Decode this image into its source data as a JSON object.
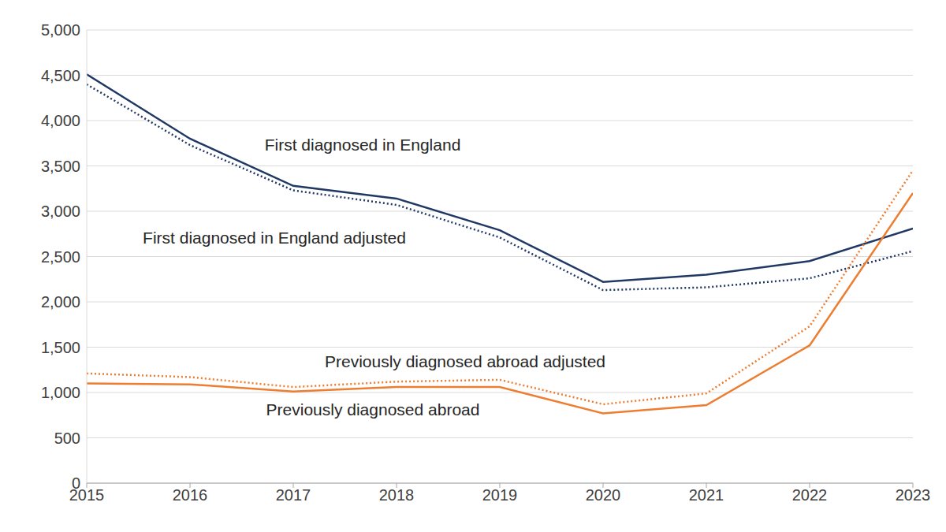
{
  "chart_data": {
    "type": "line",
    "x": [
      2015,
      2016,
      2017,
      2018,
      2019,
      2020,
      2021,
      2022,
      2023
    ],
    "xlim": [
      2015,
      2023
    ],
    "xticks": [
      2015,
      2016,
      2017,
      2018,
      2019,
      2020,
      2021,
      2022,
      2023
    ],
    "ylim": [
      0,
      5000
    ],
    "yticks": [
      0,
      500,
      {
        "value": 1000,
        "label": "1,000"
      },
      {
        "value": 1500,
        "label": "1,500"
      },
      {
        "value": 2000,
        "label": "2,000"
      },
      {
        "value": 2500,
        "label": "2,500"
      },
      {
        "value": 3000,
        "label": "3,000"
      },
      {
        "value": 3500,
        "label": "3,500"
      },
      {
        "value": 4000,
        "label": "4,000"
      },
      {
        "value": 4500,
        "label": "4,500"
      },
      {
        "value": 5000,
        "label": "5,000"
      }
    ],
    "grid": true,
    "series": [
      {
        "name": "First diagnosed in England",
        "color": "#203864",
        "line_style": "solid",
        "values": [
          4510,
          3800,
          3280,
          3140,
          2790,
          2220,
          2300,
          2450,
          2810
        ]
      },
      {
        "name": "First diagnosed in England adjusted",
        "color": "#203864",
        "line_style": "dotted",
        "values": [
          4400,
          3730,
          3230,
          3070,
          2710,
          2130,
          2160,
          2260,
          2560
        ]
      },
      {
        "name": "Previously diagnosed abroad adjusted",
        "color": "#ed7d31",
        "line_style": "dotted",
        "values": [
          1210,
          1170,
          1060,
          1120,
          1140,
          870,
          990,
          1730,
          3450
        ]
      },
      {
        "name": "Previously diagnosed abroad",
        "color": "#ed7d31",
        "line_style": "solid",
        "values": [
          1100,
          1090,
          1010,
          1060,
          1060,
          770,
          860,
          1520,
          3200
        ]
      }
    ]
  }
}
